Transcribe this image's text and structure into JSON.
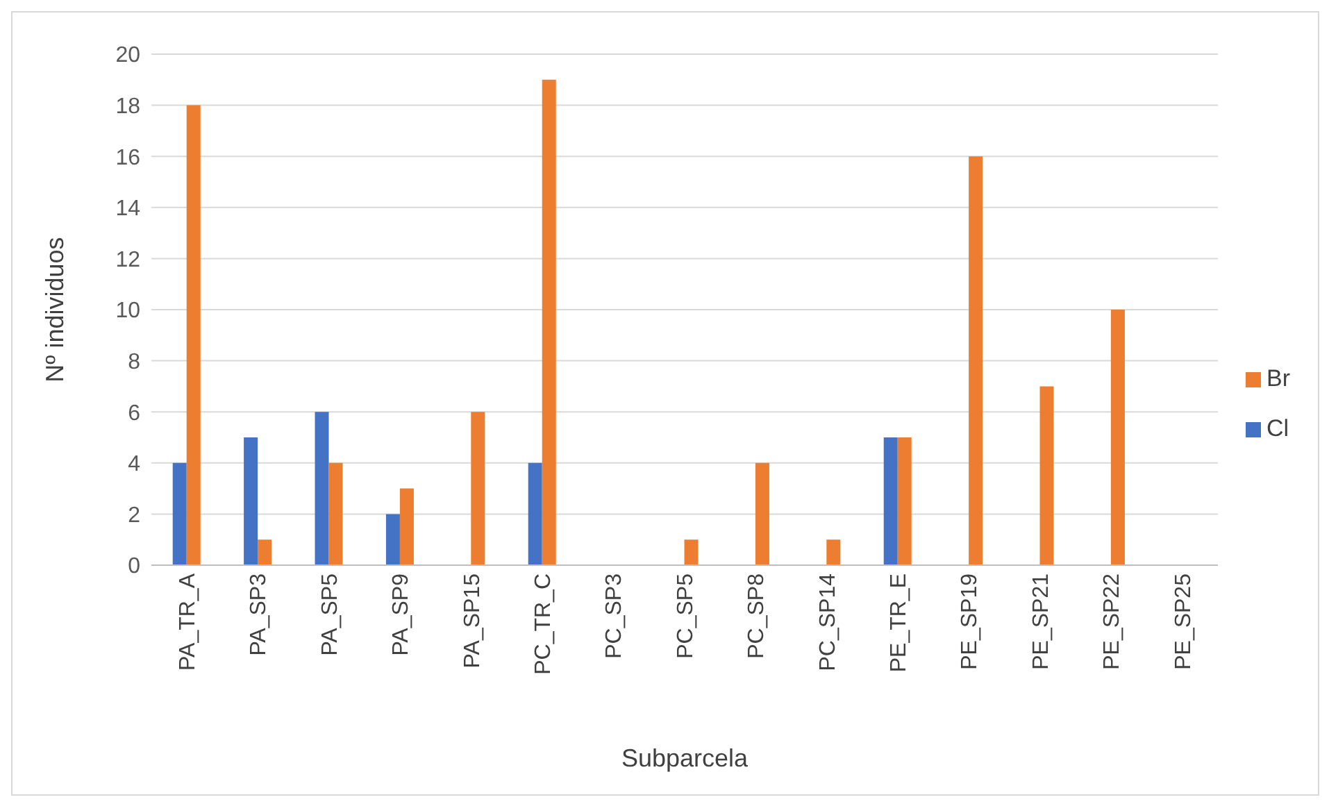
{
  "chart_data": {
    "type": "bar",
    "xlabel": "Subparcela",
    "ylabel": "Nº individuos",
    "categories": [
      "PA_TR_A",
      "PA_SP3",
      "PA_SP5",
      "PA_SP9",
      "PA_SP15",
      "PC_TR_C",
      "PC_SP3",
      "PC_SP5",
      "PC_SP8",
      "PC_SP14",
      "PE_TR_E",
      "PE_SP19",
      "PE_SP21",
      "PE_SP22",
      "PE_SP25"
    ],
    "series": [
      {
        "name": "Cl",
        "color": "#4472c4",
        "values": [
          4,
          5,
          6,
          2,
          0,
          4,
          0,
          0,
          0,
          0,
          5,
          0,
          0,
          0,
          0
        ]
      },
      {
        "name": "Br",
        "color": "#ed7d31",
        "values": [
          18,
          1,
          4,
          3,
          6,
          19,
          0,
          1,
          4,
          1,
          5,
          16,
          7,
          10,
          0
        ]
      }
    ],
    "ylim": [
      0,
      20
    ],
    "yticks": [
      0,
      2,
      4,
      6,
      8,
      10,
      12,
      14,
      16,
      18,
      20
    ],
    "grid": "y",
    "legend": "right"
  }
}
